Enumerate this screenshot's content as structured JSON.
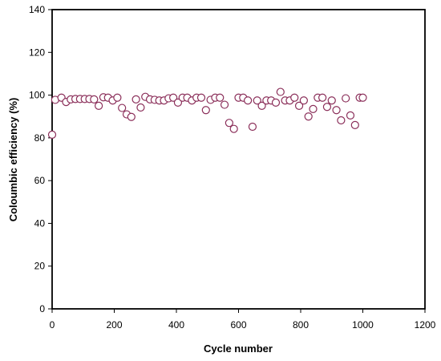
{
  "chart_data": {
    "type": "scatter",
    "title": "",
    "xlabel": "Cycle number",
    "ylabel": "Coloumbic efficiency (%)",
    "xlim": [
      0,
      1200
    ],
    "ylim": [
      0,
      140
    ],
    "xticks": [
      0,
      200,
      400,
      600,
      800,
      1000,
      1200
    ],
    "yticks": [
      0,
      20,
      40,
      60,
      80,
      100,
      120,
      140
    ],
    "grid": false,
    "legend": "none",
    "marker": {
      "shape": "circle",
      "fill": "#ffffff",
      "stroke": "#8b2f5a"
    },
    "series": [
      {
        "x": [
          0,
          10,
          30,
          45,
          60,
          75,
          90,
          105,
          120,
          135,
          150,
          165,
          180,
          195,
          210,
          225,
          240,
          255,
          270,
          285,
          300,
          315,
          330,
          345,
          360,
          375,
          390,
          405,
          420,
          435,
          450,
          465,
          480,
          495,
          510,
          525,
          540,
          555,
          570,
          585,
          600,
          615,
          630,
          645,
          660,
          675,
          690,
          705,
          720,
          735,
          750,
          765,
          780,
          795,
          810,
          825,
          840,
          855,
          870,
          885,
          900,
          915,
          930,
          945,
          960,
          975,
          990,
          1000
        ],
        "y": [
          81.5,
          97.8,
          98.8,
          96.8,
          98.0,
          98.2,
          98.2,
          98.2,
          98.2,
          98.0,
          95.0,
          99.0,
          98.8,
          97.5,
          98.8,
          94.0,
          91.0,
          89.8,
          98.0,
          94.2,
          99.2,
          98.0,
          97.8,
          97.5,
          97.5,
          98.5,
          98.8,
          96.5,
          98.8,
          98.8,
          97.5,
          98.8,
          98.8,
          93.0,
          97.8,
          98.8,
          98.8,
          95.5,
          87.0,
          84.2,
          98.8,
          98.8,
          97.5,
          85.2,
          97.5,
          95.0,
          97.5,
          97.5,
          96.5,
          101.5,
          97.5,
          97.5,
          98.8,
          95.0,
          97.5,
          90.0,
          93.5,
          98.8,
          98.8,
          94.5,
          97.5,
          93.0,
          88.2,
          98.5,
          90.5,
          86.0,
          98.8,
          98.8
        ]
      }
    ]
  }
}
